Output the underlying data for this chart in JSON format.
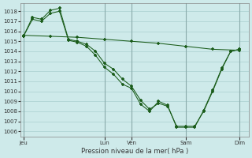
{
  "title": "Pression niveau de la mer( hPa )",
  "background_color": "#ceeaea",
  "grid_color": "#aacfcf",
  "line_color": "#1a5c1a",
  "ylim": [
    1005.5,
    1018.8
  ],
  "xtick_labels": [
    "Jeu",
    "Lun",
    "Ven",
    "Sam",
    "Dim"
  ],
  "xtick_positions": [
    0,
    9,
    12,
    18,
    24
  ],
  "xlim": [
    -0.3,
    25.0
  ],
  "series1_x": [
    0,
    1,
    2,
    3,
    4,
    5,
    6,
    7,
    8,
    9,
    10,
    11,
    12,
    13,
    14,
    15,
    16,
    17,
    18,
    19,
    20,
    21,
    22,
    23,
    24
  ],
  "series1_y": [
    1015.5,
    1017.4,
    1017.2,
    1018.1,
    1018.3,
    1015.2,
    1015.0,
    1014.7,
    1014.0,
    1012.8,
    1012.2,
    1011.2,
    1010.5,
    1009.1,
    1008.2,
    1008.8,
    1008.5,
    1006.5,
    1006.5,
    1006.5,
    1008.0,
    1010.0,
    1012.2,
    1014.0,
    1014.2
  ],
  "series2_x": [
    0,
    3,
    6,
    9,
    12,
    15,
    18,
    21,
    24
  ],
  "series2_y": [
    1015.6,
    1015.5,
    1015.4,
    1015.2,
    1015.0,
    1014.8,
    1014.5,
    1014.2,
    1014.1
  ],
  "series3_x": [
    0,
    1,
    2,
    3,
    4,
    5,
    6,
    7,
    8,
    9,
    10,
    11,
    12,
    13,
    14,
    15,
    16,
    17,
    18,
    19,
    20,
    21,
    22,
    23,
    24
  ],
  "series3_y": [
    1015.5,
    1017.2,
    1017.0,
    1017.8,
    1018.0,
    1015.1,
    1014.9,
    1014.5,
    1013.6,
    1012.4,
    1011.7,
    1010.7,
    1010.3,
    1008.7,
    1008.0,
    1009.0,
    1008.6,
    1006.4,
    1006.4,
    1006.4,
    1008.1,
    1010.1,
    1012.3,
    1014.0,
    1014.2
  ]
}
